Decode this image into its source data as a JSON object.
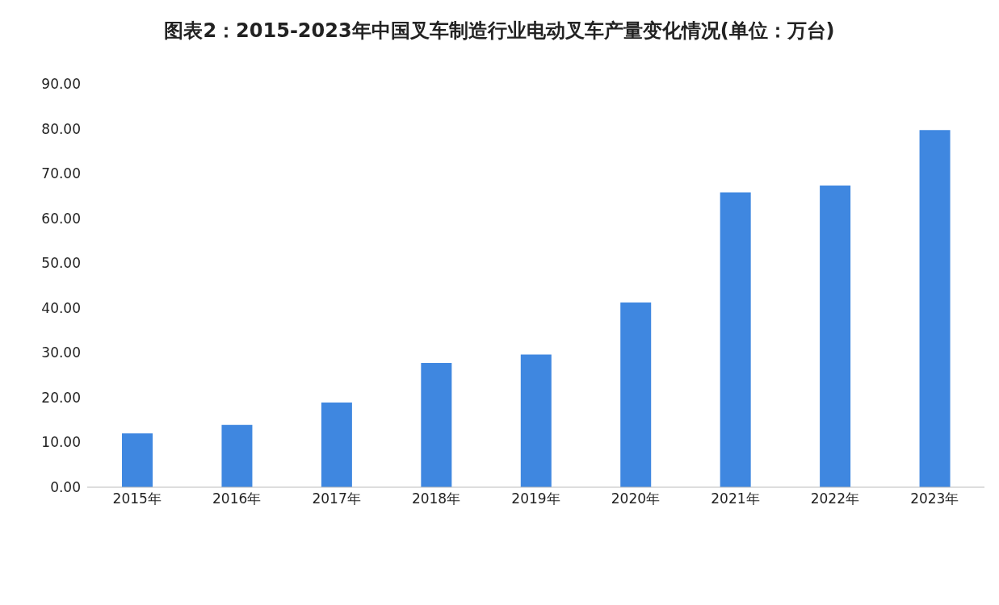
{
  "chart_data": {
    "type": "bar",
    "title": "图表2：2015-2023年中国叉车制造行业电动叉车产量变化情况(单位：万台)",
    "categories": [
      "2015年",
      "2016年",
      "2017年",
      "2018年",
      "2019年",
      "2020年",
      "2021年",
      "2022年",
      "2023年"
    ],
    "values": [
      12.0,
      13.9,
      18.9,
      27.7,
      29.6,
      41.2,
      65.8,
      67.3,
      79.7
    ],
    "color": "#3f87e0",
    "ylim": [
      0,
      90
    ],
    "yticks": [
      {
        "value": 0,
        "label": "0.00"
      },
      {
        "value": 10,
        "label": "10.00"
      },
      {
        "value": 20,
        "label": "20.00"
      },
      {
        "value": 30,
        "label": "30.00"
      },
      {
        "value": 40,
        "label": "40.00"
      },
      {
        "value": 50,
        "label": "50.00"
      },
      {
        "value": 60,
        "label": "60.00"
      },
      {
        "value": 70,
        "label": "70.00"
      },
      {
        "value": 80,
        "label": "80.00"
      },
      {
        "value": 90,
        "label": "90.00"
      }
    ],
    "grid": false
  }
}
